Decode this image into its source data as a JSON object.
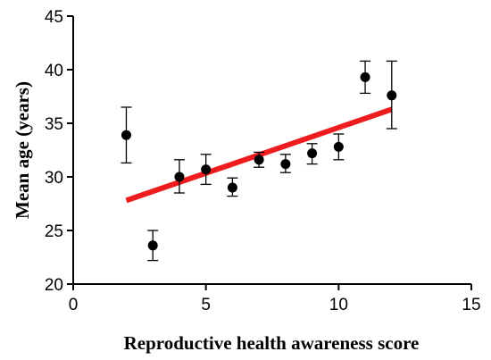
{
  "chart_data": {
    "type": "scatter",
    "xlabel": "Reproductive health awareness score",
    "ylabel": "Mean age (years)",
    "xlim": [
      0,
      15
    ],
    "ylim": [
      20,
      45
    ],
    "x_ticks": [
      0,
      5,
      10,
      15
    ],
    "y_ticks": [
      20,
      25,
      30,
      35,
      40,
      45
    ],
    "grid": false,
    "legend": "none",
    "points": [
      {
        "x": 2,
        "y": 33.9,
        "err_low": 31.3,
        "err_high": 36.5
      },
      {
        "x": 3,
        "y": 23.6,
        "err_low": 22.2,
        "err_high": 25.0
      },
      {
        "x": 4,
        "y": 30.0,
        "err_low": 28.5,
        "err_high": 31.6
      },
      {
        "x": 5,
        "y": 30.7,
        "err_low": 29.3,
        "err_high": 32.1
      },
      {
        "x": 6,
        "y": 29.0,
        "err_low": 28.2,
        "err_high": 29.9
      },
      {
        "x": 7,
        "y": 31.6,
        "err_low": 30.9,
        "err_high": 32.3
      },
      {
        "x": 8,
        "y": 31.2,
        "err_low": 30.4,
        "err_high": 32.1
      },
      {
        "x": 9,
        "y": 32.2,
        "err_low": 31.2,
        "err_high": 33.1
      },
      {
        "x": 10,
        "y": 32.8,
        "err_low": 31.6,
        "err_high": 34.0
      },
      {
        "x": 11,
        "y": 39.3,
        "err_low": 37.8,
        "err_high": 40.8
      },
      {
        "x": 12,
        "y": 37.6,
        "err_low": 34.5,
        "err_high": 40.8
      }
    ],
    "trendline": {
      "x_start": 2,
      "y_start": 27.8,
      "x_end": 12,
      "y_end": 36.3,
      "color": "#ee1c1c"
    },
    "marker_color": "#000000"
  }
}
